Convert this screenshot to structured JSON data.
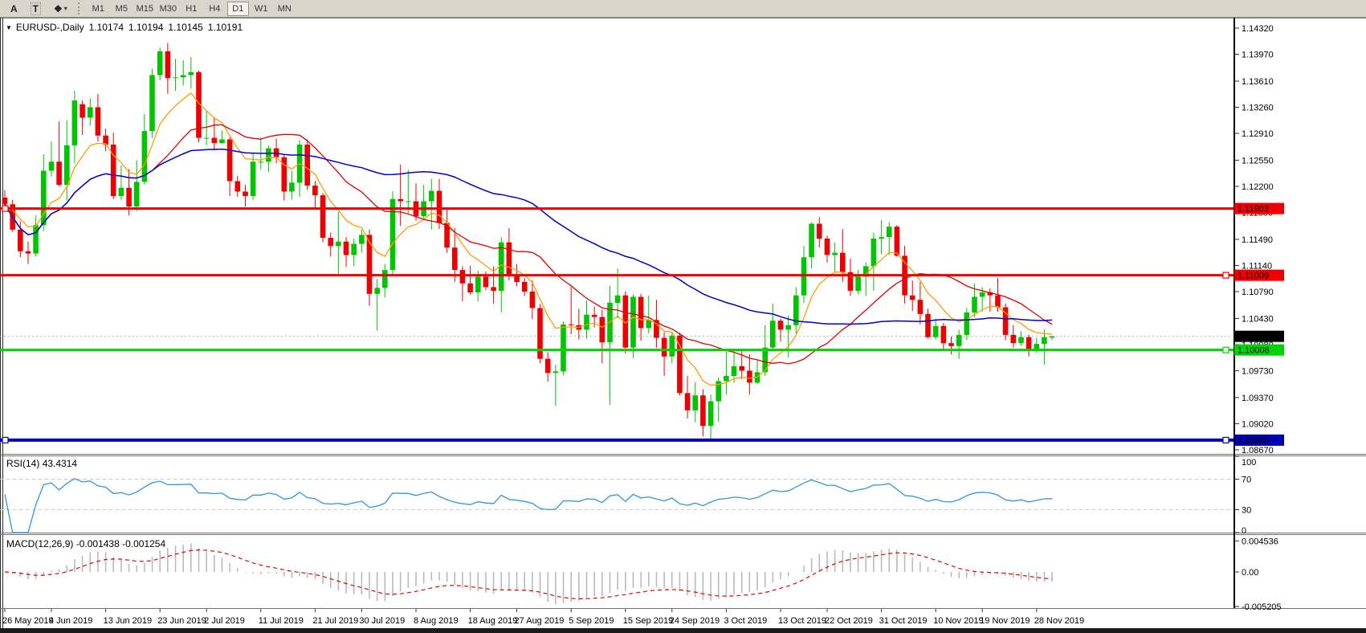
{
  "window": {
    "toolbar": {
      "tools": [
        {
          "id": "label-tool",
          "glyph": "A"
        },
        {
          "id": "text-tool",
          "glyph": "T"
        },
        {
          "id": "shapes-tool",
          "glyph": "❖"
        }
      ],
      "dropdown_glyph": "▾",
      "timeframes": [
        {
          "label": "M1",
          "active": false
        },
        {
          "label": "M5",
          "active": false
        },
        {
          "label": "M15",
          "active": false
        },
        {
          "label": "M30",
          "active": false
        },
        {
          "label": "H1",
          "active": false
        },
        {
          "label": "H4",
          "active": false
        },
        {
          "label": "D1",
          "active": true
        },
        {
          "label": "W1",
          "active": false
        },
        {
          "label": "MN",
          "active": false
        }
      ]
    }
  },
  "chart_data": {
    "type": "candlestick",
    "title": {
      "glyph": "▼",
      "symbol": "EURUSD-,Daily",
      "open": "1.10174",
      "high": "1.10194",
      "low": "1.10145",
      "close": "1.10191"
    },
    "price_axis": {
      "ticks": [
        "1.14320",
        "1.13970",
        "1.13610",
        "1.13260",
        "1.12910",
        "1.12550",
        "1.12200",
        "1.11850",
        "1.11490",
        "1.11140",
        "1.10790",
        "1.10430",
        "1.10080",
        "1.09730",
        "1.09370",
        "1.09020",
        "1.08670"
      ],
      "max": 1.1432,
      "min": 1.0867
    },
    "x_axis_labels": [
      {
        "text": "26 May 2019",
        "idx": 0
      },
      {
        "text": "4 Jun 2019",
        "idx": 6
      },
      {
        "text": "13 Jun 2019",
        "idx": 13
      },
      {
        "text": "23 Jun 2019",
        "idx": 20
      },
      {
        "text": "2 Jul 2019",
        "idx": 26
      },
      {
        "text": "11 Jul 2019",
        "idx": 33
      },
      {
        "text": "21 Jul 2019",
        "idx": 40
      },
      {
        "text": "30 Jul 2019",
        "idx": 46
      },
      {
        "text": "8 Aug 2019",
        "idx": 53
      },
      {
        "text": "18 Aug 2019",
        "idx": 60
      },
      {
        "text": "27 Aug 2019",
        "idx": 66
      },
      {
        "text": "5 Sep 2019",
        "idx": 73
      },
      {
        "text": "15 Sep 2019",
        "idx": 80
      },
      {
        "text": "24 Sep 2019",
        "idx": 86
      },
      {
        "text": "3 Oct 2019",
        "idx": 93
      },
      {
        "text": "13 Oct 2019",
        "idx": 100
      },
      {
        "text": "22 Oct 2019",
        "idx": 106
      },
      {
        "text": "31 Oct 2019",
        "idx": 113
      },
      {
        "text": "10 Nov 2019",
        "idx": 120
      },
      {
        "text": "19 Nov 2019",
        "idx": 126
      },
      {
        "text": "28 Nov 2019",
        "idx": 133
      }
    ],
    "hlines": [
      {
        "value": 1.11903,
        "label": "1.11903",
        "color": "#f00000",
        "badge_text": "#ffffff",
        "width": 3,
        "handles": [
          6
        ]
      },
      {
        "value": 1.11009,
        "label": "1.11009",
        "color": "#f00000",
        "badge_text": "#ffffff",
        "width": 3,
        "handles": [
          1526
        ]
      },
      {
        "value": 1.10008,
        "label": "1.10008",
        "color": "#00d400",
        "badge_text": "#ffffff",
        "width": 3,
        "handles": [
          1526
        ]
      },
      {
        "value": 1.088,
        "label": "1.08800",
        "color": "#0000b4",
        "badge_text": "#ffffff",
        "width": 4,
        "handles": [
          6,
          1526
        ]
      }
    ],
    "current_price": {
      "value": 1.10191,
      "label": "1.10191",
      "line_color": "#b4b4b4",
      "badge_color": "#000000"
    },
    "moving_averages": [
      {
        "period": 8,
        "method": "ema",
        "color": "#ff9c00"
      },
      {
        "period": 20,
        "method": "sma",
        "color": "#e00000"
      },
      {
        "period": 50,
        "method": "sma",
        "color": "#0000c8"
      }
    ],
    "colors": {
      "bull": "#00c400",
      "bear": "#ee0000",
      "background": "#ffffff"
    },
    "indicators": {
      "rsi": {
        "name": "RSI(14)",
        "value": "43.4314",
        "period": 14,
        "levels": [
          70,
          30
        ],
        "axis_labels": [
          "100",
          "70",
          "30",
          "0"
        ],
        "range": [
          0,
          100
        ],
        "color": "#2f95e0",
        "level_color": "#c8c8c8"
      },
      "macd": {
        "name": "MACD(12,26,9)",
        "value_main": "-0.001438",
        "value_signal": "-0.001254",
        "fast": 12,
        "slow": 26,
        "signal": 9,
        "axis_labels": [
          "0.004536",
          "0.00",
          "-0.005205"
        ],
        "axis_max": 0.004536,
        "axis_min": -0.005205,
        "hist_color": "#b9b9b9",
        "signal_color": "#e00000"
      }
    },
    "ohlc": [
      [
        1.1205,
        1.1215,
        1.1188,
        1.1196
      ],
      [
        1.1196,
        1.1202,
        1.1159,
        1.1162
      ],
      [
        1.1162,
        1.1173,
        1.1125,
        1.1133
      ],
      [
        1.1133,
        1.1146,
        1.1116,
        1.113
      ],
      [
        1.113,
        1.1181,
        1.1126,
        1.1168
      ],
      [
        1.1168,
        1.1263,
        1.116,
        1.1241
      ],
      [
        1.1241,
        1.128,
        1.1233,
        1.1253
      ],
      [
        1.1253,
        1.1307,
        1.122,
        1.1222
      ],
      [
        1.1222,
        1.1309,
        1.1201,
        1.1275
      ],
      [
        1.1275,
        1.1348,
        1.1251,
        1.1335
      ],
      [
        1.133,
        1.1335,
        1.1289,
        1.1312
      ],
      [
        1.1312,
        1.1338,
        1.1301,
        1.1326
      ],
      [
        1.1326,
        1.1344,
        1.128,
        1.1288
      ],
      [
        1.1288,
        1.1297,
        1.1267,
        1.1276
      ],
      [
        1.1276,
        1.1292,
        1.1203,
        1.1207
      ],
      [
        1.1207,
        1.1248,
        1.1202,
        1.1218
      ],
      [
        1.1218,
        1.1243,
        1.1181,
        1.1193
      ],
      [
        1.1193,
        1.1255,
        1.1187,
        1.1226
      ],
      [
        1.1226,
        1.1317,
        1.1222,
        1.1294
      ],
      [
        1.1294,
        1.1378,
        1.1285,
        1.1369
      ],
      [
        1.1369,
        1.1406,
        1.1362,
        1.1401
      ],
      [
        1.1401,
        1.1412,
        1.1344,
        1.1365
      ],
      [
        1.1365,
        1.1391,
        1.1348,
        1.1366
      ],
      [
        1.1366,
        1.1389,
        1.1355,
        1.1369
      ],
      [
        1.1369,
        1.1393,
        1.1351,
        1.1373
      ],
      [
        1.1373,
        1.1375,
        1.1279,
        1.1285
      ],
      [
        1.1285,
        1.1322,
        1.1275,
        1.1285
      ],
      [
        1.1285,
        1.1312,
        1.1268,
        1.1278
      ],
      [
        1.1278,
        1.1295,
        1.1277,
        1.1283
      ],
      [
        1.1283,
        1.1286,
        1.1207,
        1.1227
      ],
      [
        1.1227,
        1.1234,
        1.1206,
        1.1213
      ],
      [
        1.1213,
        1.1222,
        1.1193,
        1.1207
      ],
      [
        1.1207,
        1.1264,
        1.1202,
        1.1253
      ],
      [
        1.1253,
        1.1286,
        1.1243,
        1.1253
      ],
      [
        1.1253,
        1.1275,
        1.1239,
        1.1271
      ],
      [
        1.1271,
        1.1284,
        1.1251,
        1.1259
      ],
      [
        1.1259,
        1.1262,
        1.1201,
        1.1213
      ],
      [
        1.1213,
        1.1241,
        1.1202,
        1.1225
      ],
      [
        1.1225,
        1.1282,
        1.1206,
        1.1276
      ],
      [
        1.1276,
        1.1283,
        1.1215,
        1.1221
      ],
      [
        1.1221,
        1.1227,
        1.1191,
        1.1208
      ],
      [
        1.1208,
        1.1211,
        1.1145,
        1.1151
      ],
      [
        1.1151,
        1.1158,
        1.1126,
        1.114
      ],
      [
        1.114,
        1.1186,
        1.1101,
        1.1146
      ],
      [
        1.1146,
        1.1152,
        1.1112,
        1.1128
      ],
      [
        1.1128,
        1.115,
        1.1113,
        1.1143
      ],
      [
        1.1143,
        1.1162,
        1.1131,
        1.1155
      ],
      [
        1.1155,
        1.1162,
        1.106,
        1.1076
      ],
      [
        1.1076,
        1.1096,
        1.1027,
        1.1084
      ],
      [
        1.1084,
        1.1116,
        1.1071,
        1.1108
      ],
      [
        1.1108,
        1.1214,
        1.1101,
        1.1203
      ],
      [
        1.1203,
        1.1249,
        1.1167,
        1.12
      ],
      [
        1.12,
        1.1242,
        1.1184,
        1.12
      ],
      [
        1.12,
        1.1224,
        1.1174,
        1.118
      ],
      [
        1.118,
        1.1222,
        1.1177,
        1.12
      ],
      [
        1.12,
        1.123,
        1.1162,
        1.1214
      ],
      [
        1.1214,
        1.123,
        1.1163,
        1.1171
      ],
      [
        1.1171,
        1.1192,
        1.1131,
        1.1138
      ],
      [
        1.1138,
        1.1164,
        1.1092,
        1.1108
      ],
      [
        1.1108,
        1.1113,
        1.1066,
        1.109
      ],
      [
        1.109,
        1.1114,
        1.1075,
        1.1078
      ],
      [
        1.1078,
        1.1107,
        1.1066,
        1.1099
      ],
      [
        1.1099,
        1.1106,
        1.1081,
        1.1085
      ],
      [
        1.1085,
        1.1113,
        1.1063,
        1.108
      ],
      [
        1.108,
        1.1152,
        1.1051,
        1.1145
      ],
      [
        1.1145,
        1.1164,
        1.1094,
        1.1101
      ],
      [
        1.1101,
        1.1116,
        1.1086,
        1.1092
      ],
      [
        1.1092,
        1.1097,
        1.1073,
        1.1079
      ],
      [
        1.1079,
        1.1094,
        1.1042,
        1.1057
      ],
      [
        1.1057,
        1.1062,
        1.0983,
        1.0989
      ],
      [
        1.0989,
        1.0998,
        1.0958,
        1.097
      ],
      [
        1.097,
        1.0981,
        1.0926,
        1.0972
      ],
      [
        1.0972,
        1.1039,
        1.0967,
        1.1035
      ],
      [
        1.1035,
        1.1085,
        1.1022,
        1.1034
      ],
      [
        1.1034,
        1.1056,
        1.1015,
        1.1028
      ],
      [
        1.1028,
        1.1067,
        1.1016,
        1.1048
      ],
      [
        1.1048,
        1.1059,
        1.1031,
        1.1045
      ],
      [
        1.1045,
        1.1055,
        1.0983,
        1.1011
      ],
      [
        1.1011,
        1.1087,
        1.0927,
        1.1064
      ],
      [
        1.1064,
        1.111,
        1.1043,
        1.1074
      ],
      [
        1.1074,
        1.1079,
        1.0996,
        1.1004
      ],
      [
        1.1004,
        1.1075,
        1.099,
        1.1072
      ],
      [
        1.1072,
        1.1076,
        1.1013,
        1.103
      ],
      [
        1.103,
        1.1074,
        1.1023,
        1.1041
      ],
      [
        1.1041,
        1.1068,
        1.1004,
        1.1017
      ],
      [
        1.1017,
        1.1025,
        1.0966,
        1.0992
      ],
      [
        1.0992,
        1.1024,
        1.0983,
        1.102
      ],
      [
        1.102,
        1.1024,
        1.094,
        1.0943
      ],
      [
        1.0943,
        1.0966,
        1.0909,
        1.092
      ],
      [
        1.092,
        1.0958,
        1.0904,
        1.094
      ],
      [
        1.094,
        1.0948,
        1.0885,
        1.0899
      ],
      [
        1.0899,
        1.0941,
        1.0879,
        1.0932
      ],
      [
        1.0932,
        1.0964,
        1.0904,
        1.0959
      ],
      [
        1.0959,
        1.0999,
        1.0941,
        1.0966
      ],
      [
        1.0966,
        1.0999,
        1.0957,
        1.0979
      ],
      [
        1.0979,
        1.1,
        1.0962,
        1.0973
      ],
      [
        1.0973,
        1.0995,
        1.0941,
        1.0957
      ],
      [
        1.0957,
        1.0988,
        1.0955,
        1.0971
      ],
      [
        1.0971,
        1.1034,
        1.0966,
        1.1004
      ],
      [
        1.1004,
        1.1063,
        1.1002,
        1.104
      ],
      [
        1.104,
        1.1043,
        1.1012,
        1.1028
      ],
      [
        1.1028,
        1.1047,
        1.0991,
        1.1034
      ],
      [
        1.1034,
        1.1085,
        1.1023,
        1.1074
      ],
      [
        1.1074,
        1.114,
        1.1064,
        1.1125
      ],
      [
        1.1125,
        1.1172,
        1.111,
        1.117
      ],
      [
        1.117,
        1.1179,
        1.1138,
        1.115
      ],
      [
        1.115,
        1.1154,
        1.1118,
        1.1128
      ],
      [
        1.1128,
        1.1145,
        1.1105,
        1.1131
      ],
      [
        1.1131,
        1.1163,
        1.1092,
        1.1105
      ],
      [
        1.1105,
        1.1123,
        1.1073,
        1.108
      ],
      [
        1.108,
        1.1108,
        1.1075,
        1.1099
      ],
      [
        1.1099,
        1.1118,
        1.1073,
        1.1113
      ],
      [
        1.1113,
        1.1158,
        1.108,
        1.115
      ],
      [
        1.115,
        1.1175,
        1.1129,
        1.1152
      ],
      [
        1.1152,
        1.1172,
        1.1128,
        1.1166
      ],
      [
        1.1166,
        1.1168,
        1.1126,
        1.1127
      ],
      [
        1.1127,
        1.114,
        1.1063,
        1.1074
      ],
      [
        1.1074,
        1.1094,
        1.1053,
        1.1068
      ],
      [
        1.1068,
        1.1092,
        1.1035,
        1.1049
      ],
      [
        1.1049,
        1.1056,
        1.1016,
        1.1018
      ],
      [
        1.1018,
        1.1043,
        1.1015,
        1.1033
      ],
      [
        1.1033,
        1.1037,
        1.1002,
        1.101
      ],
      [
        1.101,
        1.1019,
        1.0995,
        1.1006
      ],
      [
        1.1006,
        1.1028,
        1.0989,
        1.1021
      ],
      [
        1.1021,
        1.1057,
        1.1014,
        1.1051
      ],
      [
        1.1051,
        1.109,
        1.1045,
        1.1072
      ],
      [
        1.1072,
        1.1085,
        1.1052,
        1.1078
      ],
      [
        1.1078,
        1.1083,
        1.1052,
        1.1074
      ],
      [
        1.1074,
        1.1097,
        1.1052,
        1.1058
      ],
      [
        1.1058,
        1.1063,
        1.1014,
        1.1021
      ],
      [
        1.1021,
        1.1034,
        1.1004,
        1.101
      ],
      [
        1.101,
        1.1026,
        1.1006,
        1.1018
      ],
      [
        1.1018,
        1.1021,
        1.0992,
        1.1001
      ],
      [
        1.1001,
        1.1017,
        1.0997,
        1.1009
      ],
      [
        1.1009,
        1.1028,
        1.0981,
        1.1018
      ],
      [
        1.10174,
        1.10194,
        1.10145,
        1.10191
      ]
    ]
  }
}
